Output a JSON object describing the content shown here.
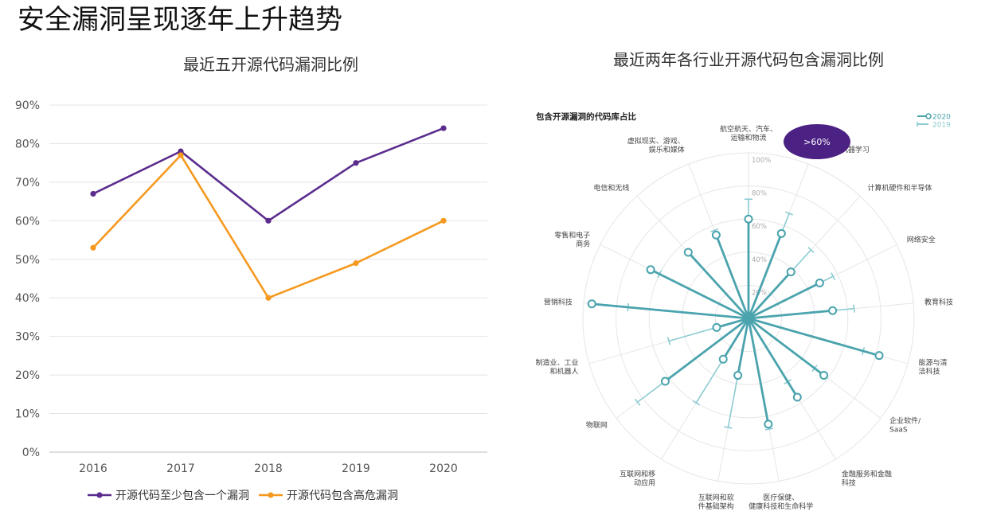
{
  "page": {
    "title": "安全漏洞呈现逐年上升趋势"
  },
  "chart_data": [
    {
      "type": "line",
      "title": "最近五开源代码漏洞比例",
      "x": [
        "2016",
        "2017",
        "2018",
        "2019",
        "2020"
      ],
      "ylim": [
        0,
        90
      ],
      "yticks": [
        "0%",
        "10%",
        "20%",
        "30%",
        "40%",
        "50%",
        "60%",
        "70%",
        "80%",
        "90%"
      ],
      "grid": true,
      "legend_position": "bottom",
      "series": [
        {
          "name": "开源代码至少包含一个漏洞",
          "values": [
            67,
            78,
            60,
            75,
            84
          ],
          "color": "#5b2c8e"
        },
        {
          "name": "开源代码包含高危漏洞",
          "values": [
            53,
            77,
            40,
            49,
            60
          ],
          "color": "#f5991f"
        }
      ]
    },
    {
      "type": "radar",
      "title": "最近两年各行业开源代码包含漏洞比例",
      "subtitle": "包含开源漏洞的代码库占比",
      "rticks": [
        "20%",
        "40%",
        "60%",
        "80%",
        "100%"
      ],
      "legend_position": "top-right",
      "callout": ">60%",
      "callout_color": "#4b2183",
      "categories": [
        "航空航天、汽车、运输和物流",
        "AI、BI和机器学习",
        "计算机硬件和半导体",
        "网络安全",
        "教育科技",
        "能源与清洁科技",
        "企业软件/SaaS",
        "金融服务和金融科技",
        "医疗保健、健康科技和生命科学",
        "互联网和软件基础架构",
        "互联网和移动应用",
        "物联网",
        "制造业、工业和机器人",
        "营销科技",
        "零售和电子商务",
        "电信和无线",
        "虚拟现实、游戏、娱乐和媒体"
      ],
      "series": [
        {
          "name": "2020",
          "values": [
            60,
            55,
            38,
            48,
            51,
            82,
            57,
            56,
            65,
            35,
            29,
            63,
            20,
            95,
            66,
            54,
            54
          ],
          "color": "#4aa3ad"
        },
        {
          "name": "2019",
          "values": [
            72,
            68,
            56,
            57,
            64,
            72,
            50,
            45,
            68,
            67,
            60,
            84,
            50,
            73,
            60,
            54,
            57
          ],
          "color": "#8ccbd1"
        }
      ]
    }
  ]
}
